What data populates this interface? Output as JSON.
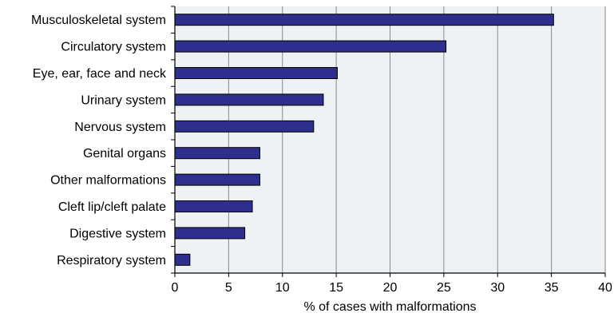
{
  "chart_data": {
    "type": "bar",
    "orientation": "horizontal",
    "categories": [
      "Musculoskeletal system",
      "Circulatory system",
      "Eye, ear, face and neck",
      "Urinary system",
      "Nervous system",
      "Genital organs",
      "Other malformations",
      "Cleft lip/cleft palate",
      "Digestive system",
      "Respiratory system"
    ],
    "values": [
      35.2,
      25.2,
      15.1,
      13.8,
      12.9,
      7.9,
      7.9,
      7.2,
      6.5,
      1.4
    ],
    "title": "",
    "xlabel": "% of cases with malformations",
    "ylabel": "",
    "xlim": [
      0,
      40
    ],
    "xticks": [
      "0",
      "5",
      "10",
      "15",
      "20",
      "25",
      "30",
      "35",
      "40"
    ],
    "grid": "vertical",
    "colors": {
      "bar_fill": "#2e2e8c",
      "bar_edge": "#000000",
      "plot_bg": "#eef2f4",
      "grid": "#8a8a8a"
    }
  }
}
